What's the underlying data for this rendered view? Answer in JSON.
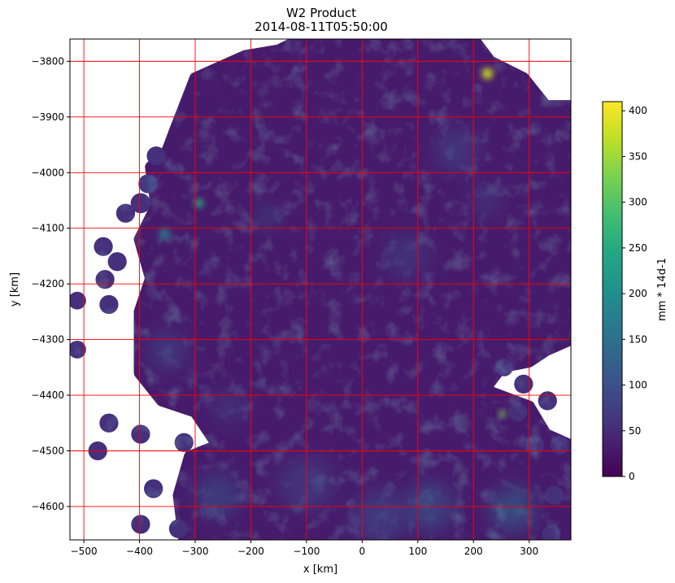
{
  "chart_data": {
    "type": "heatmap",
    "title_line1": "W2 Product",
    "title_line2": "2014-08-11T05:50:00",
    "xlabel": "x [km]",
    "ylabel": "y [km]",
    "xlim": [
      -525,
      375
    ],
    "ylim": [
      -4660,
      -3760
    ],
    "xticks": [
      -500,
      -400,
      -300,
      -200,
      -100,
      0,
      100,
      200,
      300
    ],
    "yticks": [
      -3800,
      -3900,
      -4000,
      -4100,
      -4200,
      -4300,
      -4400,
      -4500,
      -4600
    ],
    "grid": true,
    "grid_color": "#ff0000",
    "colormap": "viridis",
    "colorbar": {
      "label": "mm * 14d-1",
      "min": 0,
      "max": 410,
      "ticks": [
        0,
        50,
        100,
        150,
        200,
        250,
        300,
        350,
        400
      ]
    },
    "coverage": {
      "background_value": 30,
      "main_region": [
        [
          -335,
          -3920
        ],
        [
          -300,
          -3830
        ],
        [
          -210,
          -3790
        ],
        [
          -150,
          -3780
        ],
        [
          -110,
          -3760
        ],
        [
          200,
          -3760
        ],
        [
          230,
          -3800
        ],
        [
          290,
          -3830
        ],
        [
          330,
          -3880
        ],
        [
          375,
          -3880
        ],
        [
          375,
          -4300
        ],
        [
          330,
          -4320
        ],
        [
          300,
          -4340
        ],
        [
          250,
          -4350
        ],
        [
          220,
          -4390
        ],
        [
          300,
          -4420
        ],
        [
          330,
          -4470
        ],
        [
          375,
          -4490
        ],
        [
          375,
          -4660
        ],
        [
          -320,
          -4660
        ],
        [
          -330,
          -4580
        ],
        [
          -310,
          -4510
        ],
        [
          -260,
          -4490
        ],
        [
          -300,
          -4430
        ],
        [
          -360,
          -4410
        ],
        [
          -400,
          -4360
        ],
        [
          -400,
          -4250
        ],
        [
          -380,
          -4190
        ],
        [
          -400,
          -4120
        ],
        [
          -370,
          -4060
        ],
        [
          -380,
          -3990
        ],
        [
          -350,
          -3960
        ]
      ],
      "circles": [
        {
          "x": -512,
          "y": -4230,
          "r": 16,
          "value": 55
        },
        {
          "x": -512,
          "y": -4318,
          "r": 16,
          "value": 55
        },
        {
          "x": -462,
          "y": -4192,
          "r": 17,
          "value": 55
        },
        {
          "x": -455,
          "y": -4237,
          "r": 17,
          "value": 55
        },
        {
          "x": -465,
          "y": -4133,
          "r": 17,
          "value": 55
        },
        {
          "x": -440,
          "y": -4160,
          "r": 17,
          "value": 55
        },
        {
          "x": -425,
          "y": -4073,
          "r": 17,
          "value": 55
        },
        {
          "x": -398,
          "y": -4055,
          "r": 18,
          "value": 55
        },
        {
          "x": -385,
          "y": -4020,
          "r": 17,
          "value": 70
        },
        {
          "x": -370,
          "y": -3970,
          "r": 17,
          "value": 55
        },
        {
          "x": -455,
          "y": -4450,
          "r": 17,
          "value": 55
        },
        {
          "x": -475,
          "y": -4500,
          "r": 17,
          "value": 55
        },
        {
          "x": -398,
          "y": -4470,
          "r": 17,
          "value": 55
        },
        {
          "x": -375,
          "y": -4568,
          "r": 17,
          "value": 55
        },
        {
          "x": -398,
          "y": -4632,
          "r": 17,
          "value": 55
        },
        {
          "x": -330,
          "y": -4640,
          "r": 17,
          "value": 55
        },
        {
          "x": -320,
          "y": -4485,
          "r": 17,
          "value": 55
        },
        {
          "x": 290,
          "y": -4380,
          "r": 17,
          "value": 55
        },
        {
          "x": 333,
          "y": -4410,
          "r": 17,
          "value": 55
        },
        {
          "x": 280,
          "y": -4430,
          "r": 17,
          "value": 55
        },
        {
          "x": 310,
          "y": -4490,
          "r": 17,
          "value": 55
        },
        {
          "x": 355,
          "y": -4490,
          "r": 17,
          "value": 55
        },
        {
          "x": 345,
          "y": -4580,
          "r": 17,
          "value": 55
        },
        {
          "x": 340,
          "y": -4650,
          "r": 17,
          "value": 55
        },
        {
          "x": 255,
          "y": -4350,
          "r": 16,
          "value": 55
        }
      ],
      "hotspots": [
        {
          "x": 225,
          "y": -3822,
          "r": 10,
          "value": 380
        },
        {
          "x": -293,
          "y": -4055,
          "r": 8,
          "value": 260
        },
        {
          "x": -355,
          "y": -4110,
          "r": 10,
          "value": 170
        },
        {
          "x": 252,
          "y": -4433,
          "r": 6,
          "value": 330
        },
        {
          "x": -170,
          "y": -4080,
          "r": 18,
          "value": 130
        },
        {
          "x": 270,
          "y": -4605,
          "r": 40,
          "value": 150
        },
        {
          "x": 120,
          "y": -4600,
          "r": 45,
          "value": 120
        },
        {
          "x": -260,
          "y": -4580,
          "r": 40,
          "value": 110
        },
        {
          "x": 30,
          "y": -4620,
          "r": 50,
          "value": 95
        },
        {
          "x": -100,
          "y": -4560,
          "r": 50,
          "value": 85
        },
        {
          "x": 170,
          "y": -3960,
          "r": 40,
          "value": 90
        },
        {
          "x": 80,
          "y": -4150,
          "r": 40,
          "value": 80
        },
        {
          "x": -350,
          "y": -4320,
          "r": 35,
          "value": 95
        },
        {
          "x": -240,
          "y": -4420,
          "r": 30,
          "value": 80
        },
        {
          "x": 220,
          "y": -4050,
          "r": 30,
          "value": 75
        }
      ]
    }
  }
}
